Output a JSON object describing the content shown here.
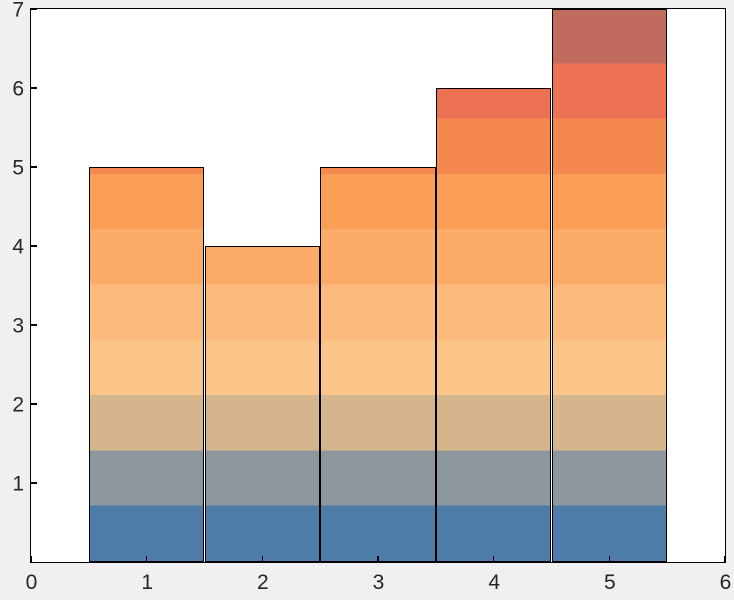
{
  "figure": {
    "background": "#f0f0f0",
    "axes_background": "#ffffff",
    "axis_color": "#000000",
    "tick_label_color": "#262626"
  },
  "chart_data": {
    "type": "bar",
    "title": "",
    "xlabel": "",
    "ylabel": "",
    "x": [
      1,
      2,
      3,
      4,
      5
    ],
    "values": [
      5,
      4,
      5,
      6,
      7
    ],
    "bar_width": 1,
    "xlim": [
      0,
      6
    ],
    "ylim": [
      0,
      7
    ],
    "x_ticks": [
      0,
      1,
      2,
      3,
      4,
      5,
      6
    ],
    "x_tick_labels": [
      "0",
      "1",
      "2",
      "3",
      "4",
      "5",
      "6"
    ],
    "y_ticks": [
      1,
      2,
      3,
      4,
      5,
      6,
      7
    ],
    "y_tick_labels": [
      "1",
      "2",
      "3",
      "4",
      "5",
      "6",
      "7"
    ],
    "grid": "off",
    "legend": "none",
    "bar_edge_color": "#000000",
    "fill_gradient": {
      "orientation": "vertical",
      "value_range": [
        0,
        7
      ],
      "bands": [
        {
          "from": 0.0,
          "to": 0.7,
          "color": "#4d7ca8"
        },
        {
          "from": 0.7,
          "to": 1.4,
          "color": "#8e979d"
        },
        {
          "from": 1.4,
          "to": 2.1,
          "color": "#d5b68c"
        },
        {
          "from": 2.1,
          "to": 2.8,
          "color": "#fbc489"
        },
        {
          "from": 2.8,
          "to": 3.5,
          "color": "#fcba7c"
        },
        {
          "from": 3.5,
          "to": 4.2,
          "color": "#fcac68"
        },
        {
          "from": 4.2,
          "to": 4.9,
          "color": "#fb9e56"
        },
        {
          "from": 4.9,
          "to": 5.6,
          "color": "#f5884e"
        },
        {
          "from": 5.6,
          "to": 6.3,
          "color": "#ec7153"
        },
        {
          "from": 6.3,
          "to": 7.0,
          "color": "#c16a5e"
        }
      ]
    }
  }
}
